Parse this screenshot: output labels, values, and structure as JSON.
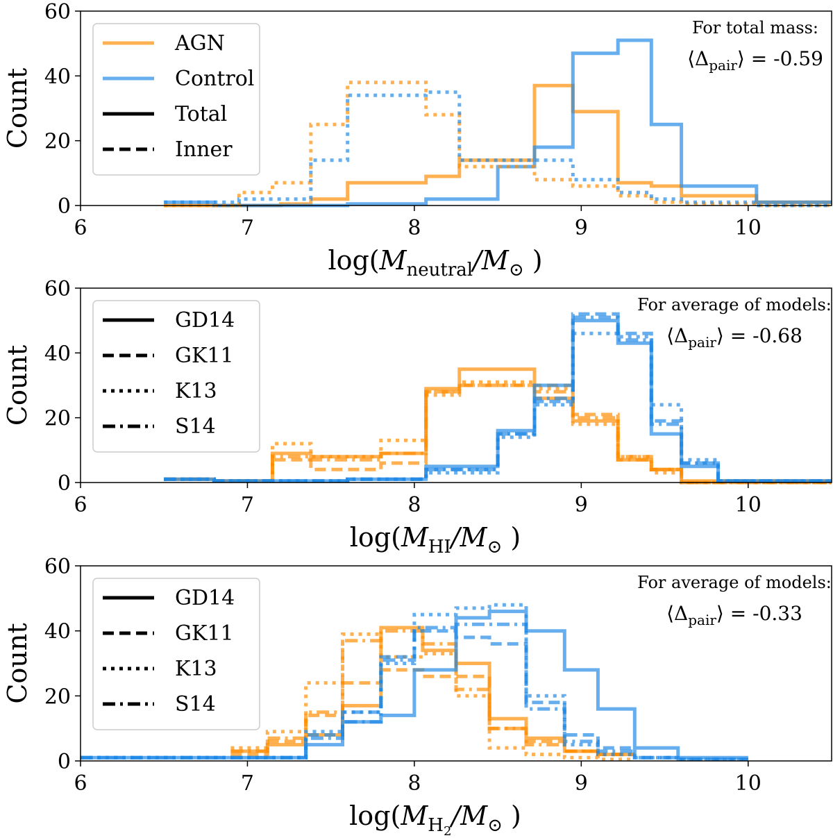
{
  "colors": {
    "agn": "#ff8c00",
    "control": "#1e88e5"
  },
  "chart_data": [
    {
      "type": "histogram",
      "xlim": [
        6,
        10.5
      ],
      "ylim": [
        0,
        60
      ],
      "xticks": [
        "6",
        "7",
        "8",
        "9",
        "10"
      ],
      "yticks": [
        "0",
        "20",
        "40",
        "60"
      ],
      "xlabel": {
        "pre": "log(",
        "main": "M",
        "sub": "neutral",
        "post": "/M",
        "postsub": "⊙",
        "close": ")"
      },
      "ylabel": "Count",
      "legend": {
        "placement": "top-left",
        "entries": [
          {
            "label": "AGN",
            "style": "solid",
            "color": "agn"
          },
          {
            "label": "Control",
            "style": "solid",
            "color": "control"
          },
          {
            "label": "Total",
            "style": "solid",
            "color": "black"
          },
          {
            "label": "Inner",
            "style": "dashed",
            "color": "black"
          }
        ]
      },
      "annotation": {
        "line1": "For total mass:",
        "eq_pre": "⟨Δ",
        "eq_sub": "pair",
        "eq_post": "⟩ = -0.59"
      },
      "series": [
        {
          "name": "AGN",
          "group": "agn",
          "style": "solid",
          "edges": [
            6.5,
            7.2,
            7.38,
            7.6,
            8.07,
            8.27,
            8.72,
            8.95,
            9.22,
            9.42,
            9.6,
            10.05,
            10.5
          ],
          "counts": [
            0,
            0.5,
            2,
            7,
            9,
            14,
            37,
            29,
            7,
            6,
            3,
            1
          ]
        },
        {
          "name": "Control",
          "group": "control",
          "style": "solid",
          "edges": [
            6.5,
            6.8,
            7.6,
            8.07,
            8.5,
            8.72,
            8.95,
            9.22,
            9.42,
            9.6,
            10.05,
            10.5
          ],
          "counts": [
            1,
            0,
            0.5,
            2,
            12,
            18,
            47,
            51,
            25,
            6,
            1
          ]
        },
        {
          "name": "AGN",
          "group": "agn",
          "style": "dotted",
          "edges": [
            6.5,
            6.95,
            7.15,
            7.38,
            7.6,
            8.07,
            8.27,
            8.72,
            8.95,
            9.22,
            9.42,
            9.6,
            10.05,
            10.5
          ],
          "counts": [
            0,
            4,
            7,
            25,
            38,
            28,
            12,
            8,
            6,
            3,
            1,
            0.5,
            0
          ]
        },
        {
          "name": "Control",
          "group": "control",
          "style": "dotted",
          "edges": [
            6.5,
            6.95,
            7.38,
            7.6,
            8.07,
            8.27,
            8.72,
            8.95,
            9.22,
            9.42,
            9.6,
            10.05,
            10.5
          ],
          "counts": [
            1,
            2,
            14,
            34,
            35,
            14,
            14,
            8,
            4,
            2,
            1,
            0
          ]
        }
      ]
    },
    {
      "type": "histogram",
      "xlim": [
        6,
        10.5
      ],
      "ylim": [
        0,
        60
      ],
      "xticks": [
        "6",
        "7",
        "8",
        "9",
        "10"
      ],
      "yticks": [
        "0",
        "20",
        "40",
        "60"
      ],
      "xlabel": {
        "pre": "log(",
        "main": "M",
        "sub": "HI",
        "post": "/M",
        "postsub": "⊙",
        "close": ")"
      },
      "ylabel": "Count",
      "legend": {
        "placement": "top-left",
        "entries": [
          {
            "label": "GD14",
            "style": "solid",
            "color": "black"
          },
          {
            "label": "GK11",
            "style": "dashed",
            "color": "black"
          },
          {
            "label": "K13",
            "style": "dotted",
            "color": "black"
          },
          {
            "label": "S14",
            "style": "dashdot",
            "color": "black"
          }
        ]
      },
      "annotation": {
        "line1": "For average of models:",
        "eq_pre": "⟨Δ",
        "eq_sub": "pair",
        "eq_post": "⟩ = -0.68"
      },
      "series": [
        {
          "name": "GD14",
          "group": "agn",
          "style": "solid",
          "edges": [
            6.5,
            6.8,
            7.15,
            7.38,
            7.8,
            8.07,
            8.27,
            8.72,
            8.95,
            9.22,
            9.42,
            9.6,
            10.5
          ],
          "counts": [
            1,
            0.5,
            9,
            8,
            9,
            29,
            35,
            26,
            19,
            7,
            4,
            0.5
          ]
        },
        {
          "name": "GK11",
          "group": "agn",
          "style": "dashed",
          "edges": [
            6.5,
            6.8,
            7.15,
            7.38,
            7.8,
            8.07,
            8.27,
            8.72,
            8.95,
            9.22,
            9.42,
            9.6,
            10.5
          ],
          "counts": [
            1,
            0.5,
            7,
            4,
            6,
            28,
            30,
            30,
            21,
            8,
            4,
            0
          ]
        },
        {
          "name": "K13",
          "group": "agn",
          "style": "dotted",
          "edges": [
            6.5,
            6.8,
            7.15,
            7.38,
            7.8,
            8.07,
            8.27,
            8.72,
            8.95,
            9.22,
            9.42,
            9.6,
            10.5
          ],
          "counts": [
            1,
            0.5,
            12,
            8,
            13,
            27,
            31,
            29,
            18,
            8,
            3,
            0
          ]
        },
        {
          "name": "S14",
          "group": "agn",
          "style": "dashdot",
          "edges": [
            6.5,
            6.8,
            7.15,
            7.38,
            7.8,
            8.07,
            8.27,
            8.72,
            8.95,
            9.22,
            9.42,
            9.6,
            10.5
          ],
          "counts": [
            1,
            0.5,
            8,
            7,
            9,
            28,
            30,
            28,
            20,
            7,
            4,
            0
          ]
        },
        {
          "name": "GD14",
          "group": "control",
          "style": "solid",
          "edges": [
            6.5,
            6.8,
            7.6,
            8.07,
            8.5,
            8.72,
            8.95,
            9.22,
            9.42,
            9.6,
            9.82,
            10.5
          ],
          "counts": [
            1,
            0.5,
            1,
            5,
            16,
            30,
            50,
            43,
            15,
            5,
            0.5
          ]
        },
        {
          "name": "GK11",
          "group": "control",
          "style": "dashed",
          "edges": [
            6.5,
            6.8,
            7.6,
            8.07,
            8.5,
            8.72,
            8.95,
            9.22,
            9.42,
            9.6,
            9.82,
            10.5
          ],
          "counts": [
            1,
            0.5,
            1,
            4,
            15,
            25,
            52,
            46,
            19,
            6,
            0.5
          ]
        },
        {
          "name": "K13",
          "group": "control",
          "style": "dotted",
          "edges": [
            6.5,
            6.8,
            7.6,
            8.07,
            8.5,
            8.72,
            8.95,
            9.22,
            9.42,
            9.6,
            9.82,
            10.5
          ],
          "counts": [
            1,
            0.5,
            1,
            3,
            14,
            24,
            46,
            45,
            24,
            7,
            0.5
          ]
        },
        {
          "name": "S14",
          "group": "control",
          "style": "dashdot",
          "edges": [
            6.5,
            6.8,
            7.6,
            8.07,
            8.5,
            8.72,
            8.95,
            9.22,
            9.42,
            9.6,
            9.82,
            10.5
          ],
          "counts": [
            1,
            0.5,
            1,
            4,
            15,
            26,
            51,
            44,
            18,
            6,
            0.5
          ]
        }
      ]
    },
    {
      "type": "histogram",
      "xlim": [
        6,
        10.5
      ],
      "ylim": [
        0,
        60
      ],
      "xticks": [
        "6",
        "7",
        "8",
        "9",
        "10"
      ],
      "yticks": [
        "0",
        "20",
        "40",
        "60"
      ],
      "xlabel": {
        "pre": "log(",
        "main": "M",
        "sub": "H",
        "subsub": "2",
        "post": "/M",
        "postsub": "⊙",
        "close": ")"
      },
      "ylabel": "Count",
      "legend": {
        "placement": "top-left",
        "entries": [
          {
            "label": "GD14",
            "style": "solid",
            "color": "black"
          },
          {
            "label": "GK11",
            "style": "dashed",
            "color": "black"
          },
          {
            "label": "K13",
            "style": "dotted",
            "color": "black"
          },
          {
            "label": "S14",
            "style": "dashdot",
            "color": "black"
          }
        ]
      },
      "annotation": {
        "line1": "For average of models:",
        "eq_pre": "⟨Δ",
        "eq_sub": "pair",
        "eq_post": "⟩ = -0.33"
      },
      "series": [
        {
          "name": "GD14",
          "group": "agn",
          "style": "solid",
          "edges": [
            6.9,
            7.12,
            7.35,
            7.57,
            7.8,
            8.05,
            8.25,
            8.45,
            8.67,
            8.9,
            9.1,
            9.32
          ],
          "counts": [
            3,
            5,
            8,
            17,
            41,
            34,
            30,
            13,
            7,
            3,
            2
          ]
        },
        {
          "name": "GK11",
          "group": "agn",
          "style": "dashed",
          "edges": [
            6.9,
            7.12,
            7.35,
            7.57,
            7.8,
            8.05,
            8.25,
            8.45,
            8.67,
            8.9,
            9.1,
            9.32
          ],
          "counts": [
            2,
            6,
            14,
            24,
            28,
            26,
            26,
            10,
            6,
            3,
            2
          ]
        },
        {
          "name": "K13",
          "group": "agn",
          "style": "dotted",
          "edges": [
            6.9,
            7.12,
            7.35,
            7.57,
            7.8,
            8.05,
            8.25,
            8.45,
            8.67,
            8.9,
            9.1,
            9.32
          ],
          "counts": [
            4,
            9,
            24,
            39,
            32,
            33,
            20,
            4,
            2,
            1,
            0.5
          ]
        },
        {
          "name": "S14",
          "group": "agn",
          "style": "dashdot",
          "edges": [
            6.9,
            7.12,
            7.35,
            7.57,
            7.8,
            8.05,
            8.25,
            8.45,
            8.67,
            8.9,
            9.1,
            9.32
          ],
          "counts": [
            3,
            7,
            15,
            37,
            40,
            36,
            22,
            10,
            5,
            3,
            2
          ]
        },
        {
          "name": "GD14",
          "group": "control",
          "style": "solid",
          "edges": [
            6.0,
            6.9,
            7.35,
            7.57,
            7.8,
            8.0,
            8.25,
            8.45,
            8.67,
            8.9,
            9.1,
            9.32,
            9.58,
            10.0
          ],
          "counts": [
            1,
            1,
            5,
            12,
            14,
            28,
            44,
            46,
            40,
            28,
            16,
            4,
            1
          ]
        },
        {
          "name": "GK11",
          "group": "control",
          "style": "dashed",
          "edges": [
            6.0,
            6.9,
            7.35,
            7.57,
            7.8,
            8.0,
            8.25,
            8.45,
            8.67,
            8.9,
            9.1,
            9.32,
            9.58,
            10.0
          ],
          "counts": [
            1,
            1,
            8,
            15,
            32,
            40,
            38,
            36,
            18,
            8,
            4,
            1,
            0.5
          ]
        },
        {
          "name": "K13",
          "group": "control",
          "style": "dotted",
          "edges": [
            6.0,
            6.9,
            7.35,
            7.57,
            7.8,
            8.0,
            8.25,
            8.45,
            8.67,
            8.9,
            9.1,
            9.32,
            9.58,
            10.0
          ],
          "counts": [
            1,
            1,
            9,
            15,
            30,
            45,
            47,
            48,
            20,
            5,
            2,
            1,
            0.5
          ]
        },
        {
          "name": "S14",
          "group": "control",
          "style": "dashdot",
          "edges": [
            6.0,
            6.9,
            7.35,
            7.57,
            7.8,
            8.0,
            8.25,
            8.45,
            8.67,
            8.9,
            9.1,
            9.32,
            9.58,
            10.0
          ],
          "counts": [
            1,
            1,
            7,
            12,
            31,
            41,
            42,
            42,
            16,
            6,
            3,
            1,
            0.5
          ]
        }
      ]
    }
  ]
}
